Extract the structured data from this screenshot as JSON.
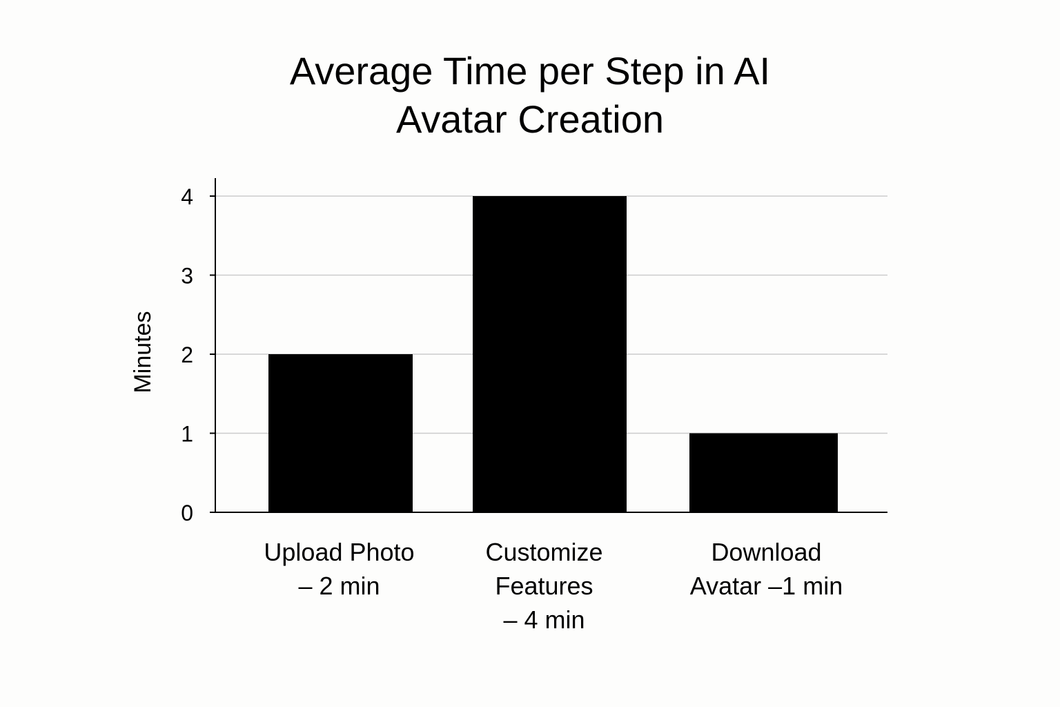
{
  "chart_data": {
    "type": "bar",
    "title": "Average Time per Step in AI Avatar Creation",
    "title_lines": [
      "Average Time per Step in AI",
      "Avatar Creation"
    ],
    "ylabel": "Minutes",
    "xlabel": "",
    "categories": [
      "Upload Photo – 2 min",
      "Customize Features – 4 min",
      "Download Avatar –1 min"
    ],
    "category_lines": [
      [
        "Upload Photo",
        "– 2 min"
      ],
      [
        "Customize",
        "Features",
        "– 4 min"
      ],
      [
        "Download",
        "Avatar –1 min"
      ]
    ],
    "values": [
      2,
      4,
      1
    ],
    "ylim": [
      0,
      4
    ],
    "yticks": [
      "0",
      "1",
      "2",
      "3",
      "4"
    ],
    "grid": true,
    "bar_color": "#000000",
    "grid_color": "#cccccc"
  }
}
